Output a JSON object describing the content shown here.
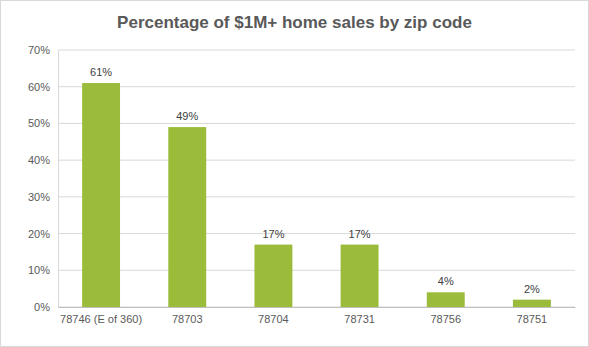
{
  "chart_data": {
    "type": "bar",
    "title": "Percentage of $1M+ home sales by zip code",
    "categories": [
      "78746 (E of 360)",
      "78703",
      "78704",
      "78731",
      "78756",
      "78751"
    ],
    "values": [
      61,
      49,
      17,
      17,
      4,
      2
    ],
    "value_labels": [
      "61%",
      "49%",
      "17%",
      "17%",
      "4%",
      "2%"
    ],
    "color": "#9bbb3b",
    "ylim": [
      0,
      70
    ],
    "yticks": [
      {
        "value": 0,
        "label": "0%"
      },
      {
        "value": 10,
        "label": "10%"
      },
      {
        "value": 20,
        "label": "20%"
      },
      {
        "value": 30,
        "label": "30%"
      },
      {
        "value": 40,
        "label": "40%"
      },
      {
        "value": 50,
        "label": "50%"
      },
      {
        "value": 60,
        "label": "60%"
      },
      {
        "value": 70,
        "label": "70%"
      }
    ],
    "grid": true,
    "data_labels": true
  }
}
